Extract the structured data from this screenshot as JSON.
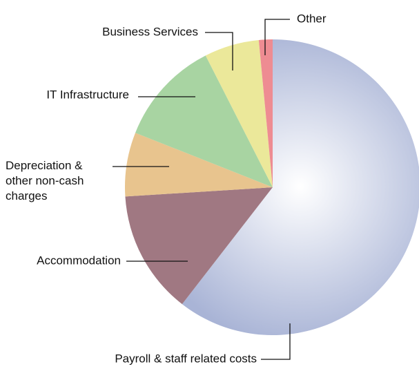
{
  "chart_data": {
    "type": "pie",
    "categories": [
      "Payroll & staff related costs",
      "Accommodation",
      "Depreciation & other non-cash charges",
      "IT Infrastructure",
      "Business Services",
      "Other"
    ],
    "values": [
      60.5,
      13.5,
      7,
      11.5,
      6,
      1.5
    ],
    "colors": [
      "#a9b4d6",
      "#a07882",
      "#e8c48e",
      "#a8d4a2",
      "#ebe89a",
      "#ee8c92"
    ]
  }
}
